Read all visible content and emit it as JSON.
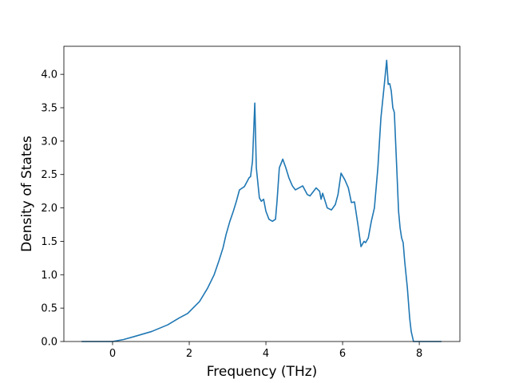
{
  "chart_data": {
    "type": "line",
    "xlabel": "Frequency (THz)",
    "ylabel": "Density of States",
    "xlim": [
      -1.27,
      9.06
    ],
    "ylim": [
      0,
      4.42
    ],
    "xticks": [
      0,
      2,
      4,
      6,
      8
    ],
    "yticks": [
      {
        "value": 0,
        "label": "0.0"
      },
      {
        "value": 0.5,
        "label": "0.5"
      },
      {
        "value": 1,
        "label": "1.0"
      },
      {
        "value": 1.5,
        "label": "1.5"
      },
      {
        "value": 2,
        "label": "2.0"
      },
      {
        "value": 2.5,
        "label": "2.5"
      },
      {
        "value": 3,
        "label": "3.0"
      },
      {
        "value": 3.5,
        "label": "3.5"
      },
      {
        "value": 4,
        "label": "4.0"
      }
    ],
    "x": [
      -0.81,
      0,
      0.29,
      0.6,
      1.02,
      1.44,
      1.73,
      1.96,
      2.27,
      2.48,
      2.65,
      2.77,
      2.88,
      2.96,
      3.06,
      3.15,
      3.23,
      3.31,
      3.44,
      3.56,
      3.6,
      3.65,
      3.71,
      3.75,
      3.83,
      3.88,
      3.94,
      4.0,
      4.08,
      4.17,
      4.25,
      4.29,
      4.35,
      4.44,
      4.52,
      4.6,
      4.69,
      4.77,
      4.96,
      5.08,
      5.15,
      5.31,
      5.4,
      5.44,
      5.48,
      5.6,
      5.71,
      5.81,
      5.88,
      5.96,
      6.06,
      6.15,
      6.23,
      6.31,
      6.4,
      6.48,
      6.56,
      6.6,
      6.67,
      6.75,
      6.83,
      6.92,
      7.0,
      7.08,
      7.15,
      7.19,
      7.23,
      7.27,
      7.31,
      7.35,
      7.42,
      7.46,
      7.5,
      7.54,
      7.58,
      7.62,
      7.69,
      7.75,
      7.79,
      7.85,
      8.58
    ],
    "series": [
      {
        "color": "#1f77b4",
        "values": [
          0,
          0,
          0.03,
          0.08,
          0.15,
          0.25,
          0.35,
          0.42,
          0.6,
          0.8,
          1.0,
          1.2,
          1.4,
          1.6,
          1.8,
          1.95,
          2.1,
          2.27,
          2.32,
          2.45,
          2.47,
          2.7,
          3.57,
          2.6,
          2.15,
          2.1,
          2.13,
          1.95,
          1.83,
          1.8,
          1.83,
          2.1,
          2.6,
          2.73,
          2.6,
          2.45,
          2.33,
          2.27,
          2.33,
          2.2,
          2.18,
          2.3,
          2.25,
          2.13,
          2.22,
          2.0,
          1.97,
          2.05,
          2.2,
          2.52,
          2.42,
          2.3,
          2.08,
          2.09,
          1.75,
          1.42,
          1.5,
          1.48,
          1.55,
          1.8,
          2.0,
          2.6,
          3.35,
          3.8,
          4.21,
          3.85,
          3.86,
          3.75,
          3.5,
          3.43,
          2.5,
          1.95,
          1.7,
          1.55,
          1.48,
          1.2,
          0.8,
          0.35,
          0.15,
          0,
          0
        ]
      }
    ]
  }
}
